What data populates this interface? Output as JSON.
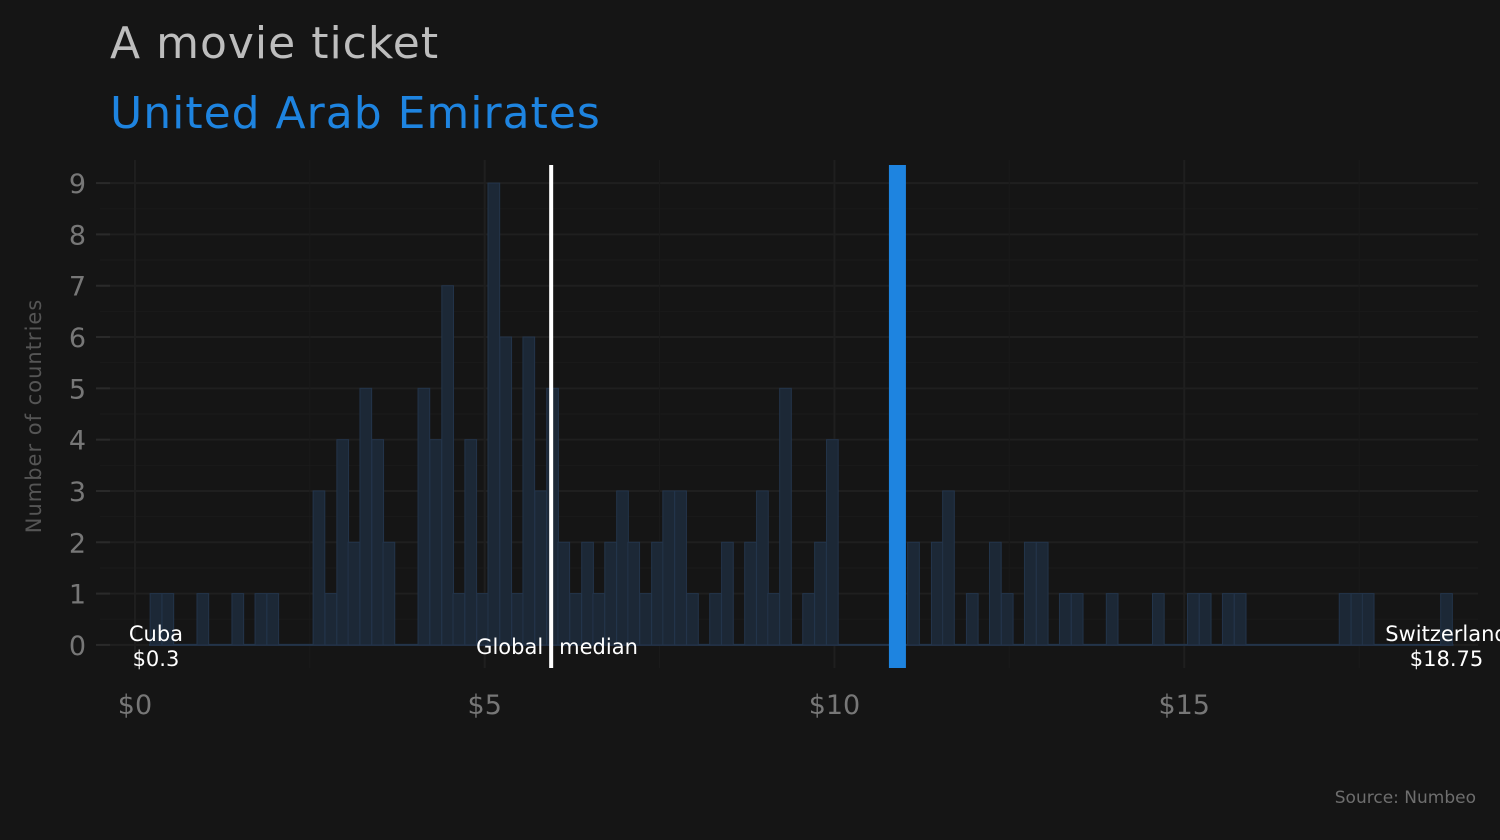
{
  "chart_data": {
    "type": "bar",
    "title": "A movie ticket",
    "subtitle": "United Arab Emirates",
    "source": "Source: Numbeo",
    "ylabel": "Number of countries",
    "xlabel": "",
    "bin_width": 0.167,
    "xlim": [
      -0.5,
      19.2
    ],
    "ylim": [
      -0.45,
      9.45
    ],
    "x_ticks": [
      0,
      5,
      10,
      15
    ],
    "x_tick_labels": [
      "$0",
      "$5",
      "$10",
      "$15"
    ],
    "y_ticks": [
      0,
      1,
      2,
      3,
      4,
      5,
      6,
      7,
      8,
      9
    ],
    "y_tick_labels": [
      "0",
      "1",
      "2",
      "3",
      "4",
      "5",
      "6",
      "7",
      "8",
      "9"
    ],
    "grid": true,
    "legend": "none",
    "bars": [
      {
        "x": 0.3,
        "count": 1
      },
      {
        "x": 0.47,
        "count": 1
      },
      {
        "x": 0.97,
        "count": 1
      },
      {
        "x": 1.47,
        "count": 1
      },
      {
        "x": 1.8,
        "count": 1
      },
      {
        "x": 1.97,
        "count": 1
      },
      {
        "x": 2.63,
        "count": 3
      },
      {
        "x": 2.8,
        "count": 1
      },
      {
        "x": 2.97,
        "count": 4
      },
      {
        "x": 3.13,
        "count": 2
      },
      {
        "x": 3.3,
        "count": 5
      },
      {
        "x": 3.47,
        "count": 4
      },
      {
        "x": 3.63,
        "count": 2
      },
      {
        "x": 4.13,
        "count": 5
      },
      {
        "x": 4.3,
        "count": 4
      },
      {
        "x": 4.47,
        "count": 7
      },
      {
        "x": 4.63,
        "count": 1
      },
      {
        "x": 4.8,
        "count": 4
      },
      {
        "x": 4.97,
        "count": 1
      },
      {
        "x": 5.13,
        "count": 9
      },
      {
        "x": 5.3,
        "count": 6
      },
      {
        "x": 5.47,
        "count": 1
      },
      {
        "x": 5.63,
        "count": 6
      },
      {
        "x": 5.8,
        "count": 3
      },
      {
        "x": 5.97,
        "count": 5
      },
      {
        "x": 6.13,
        "count": 2
      },
      {
        "x": 6.3,
        "count": 1
      },
      {
        "x": 6.47,
        "count": 2
      },
      {
        "x": 6.63,
        "count": 1
      },
      {
        "x": 6.8,
        "count": 2
      },
      {
        "x": 6.97,
        "count": 3
      },
      {
        "x": 7.13,
        "count": 2
      },
      {
        "x": 7.3,
        "count": 1
      },
      {
        "x": 7.47,
        "count": 2
      },
      {
        "x": 7.63,
        "count": 3
      },
      {
        "x": 7.8,
        "count": 3
      },
      {
        "x": 7.97,
        "count": 1
      },
      {
        "x": 8.3,
        "count": 1
      },
      {
        "x": 8.47,
        "count": 2
      },
      {
        "x": 8.8,
        "count": 2
      },
      {
        "x": 8.97,
        "count": 3
      },
      {
        "x": 9.13,
        "count": 1
      },
      {
        "x": 9.3,
        "count": 5
      },
      {
        "x": 9.63,
        "count": 1
      },
      {
        "x": 9.8,
        "count": 2
      },
      {
        "x": 9.97,
        "count": 4
      },
      {
        "x": 11.13,
        "count": 2
      },
      {
        "x": 11.47,
        "count": 2
      },
      {
        "x": 11.63,
        "count": 3
      },
      {
        "x": 11.97,
        "count": 1
      },
      {
        "x": 12.3,
        "count": 2
      },
      {
        "x": 12.47,
        "count": 1
      },
      {
        "x": 12.8,
        "count": 2
      },
      {
        "x": 12.97,
        "count": 2
      },
      {
        "x": 13.3,
        "count": 1
      },
      {
        "x": 13.47,
        "count": 1
      },
      {
        "x": 13.97,
        "count": 1
      },
      {
        "x": 14.63,
        "count": 1
      },
      {
        "x": 15.13,
        "count": 1
      },
      {
        "x": 15.3,
        "count": 1
      },
      {
        "x": 15.63,
        "count": 1
      },
      {
        "x": 15.8,
        "count": 1
      },
      {
        "x": 17.3,
        "count": 1
      },
      {
        "x": 17.47,
        "count": 1
      },
      {
        "x": 17.63,
        "count": 1
      },
      {
        "x": 18.75,
        "count": 1
      }
    ],
    "bar_color": "#1c2836",
    "bar_edge_color": "#23344a",
    "highlight": {
      "label": "United Arab Emirates",
      "x": 10.9,
      "color": "#1e84e0"
    },
    "median": {
      "label_left": "Global",
      "label_right": "median",
      "x": 5.95,
      "color": "#ffffff"
    },
    "annotations": [
      {
        "name": "Cuba",
        "value_label": "$0.3",
        "x": 0.3
      },
      {
        "name": "Switzerland",
        "value_label": "$18.75",
        "x": 18.75
      }
    ]
  }
}
